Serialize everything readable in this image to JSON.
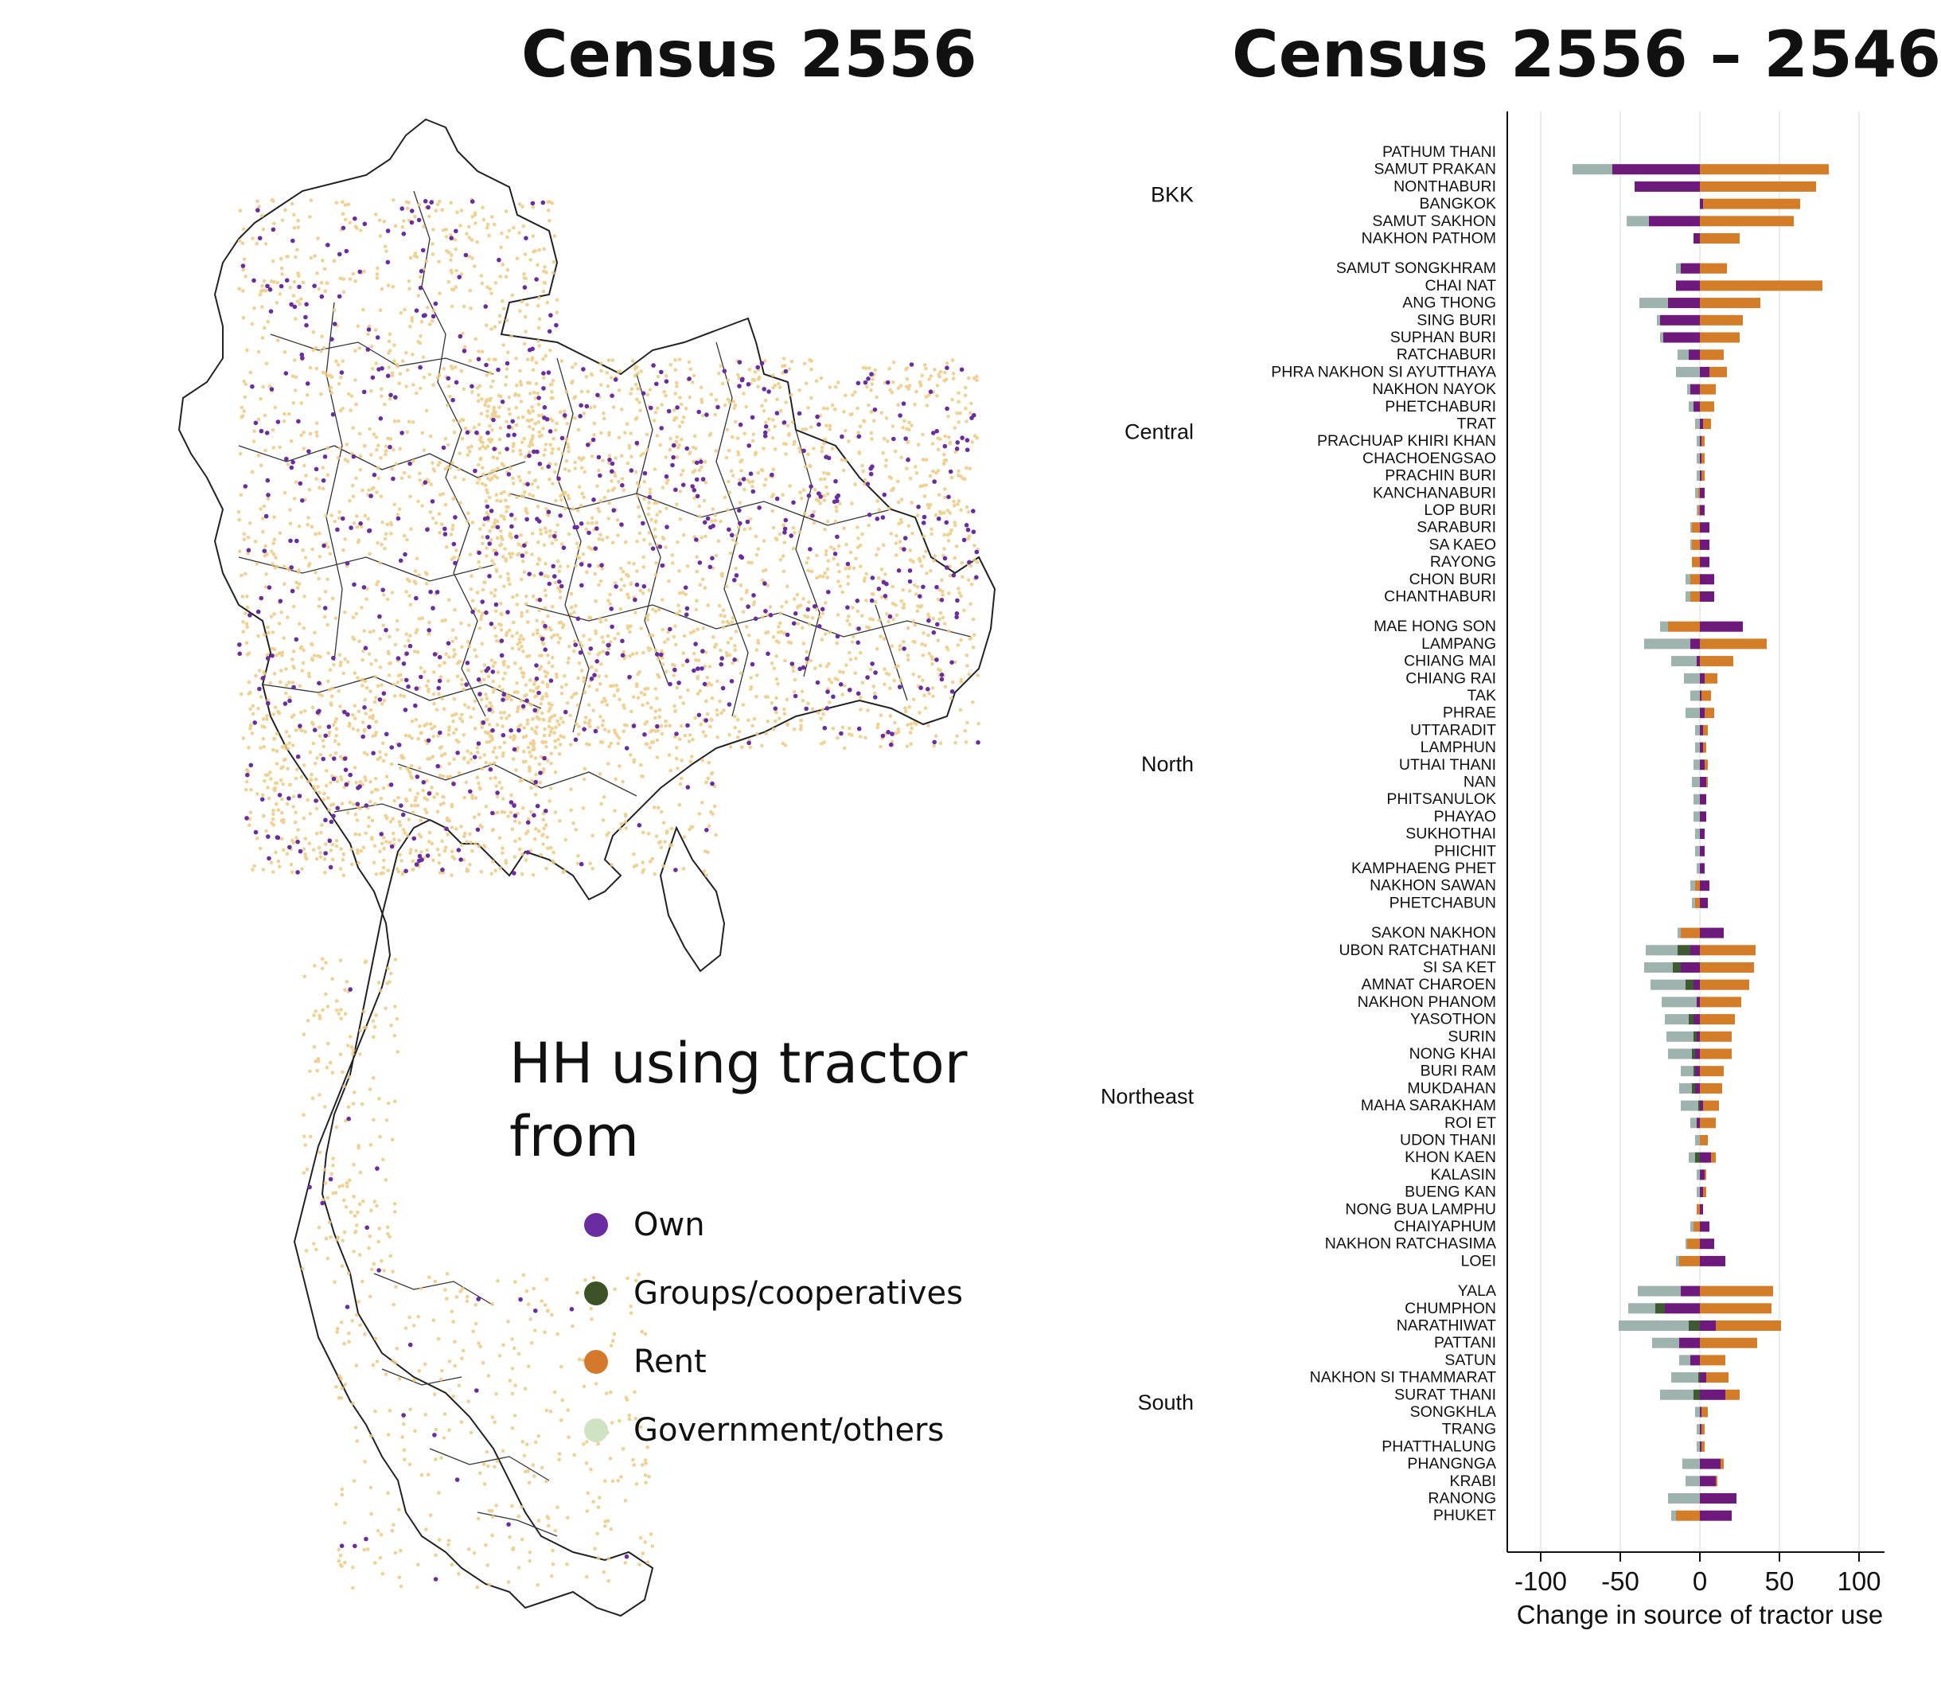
{
  "map_title": "Census 2556",
  "chart_title": "Census 2556 – 2546",
  "legend": {
    "title": "HH using tractor from",
    "items": [
      {
        "label": "Own",
        "color": "#6a2ca0"
      },
      {
        "label": "Groups/cooperatives",
        "color": "#3b5226"
      },
      {
        "label": "Rent",
        "color": "#d4782b"
      },
      {
        "label": "Government/others",
        "color": "#cfe3c2"
      }
    ]
  },
  "chart_data": {
    "type": "bar",
    "orientation": "horizontal",
    "stacked": true,
    "title": "Census 2556 – 2546",
    "xlabel": "Change in source of tractor use",
    "xlim": [
      -120,
      110
    ],
    "xticks": [
      -100,
      -50,
      0,
      50,
      100
    ],
    "grid": true,
    "colors": {
      "Own": "#6e1a7c",
      "Groups": "#3f5a33",
      "Rent": "#d37d28",
      "Government": "#9eb3ae"
    },
    "regions": [
      {
        "name": "BKK",
        "provinces": [
          {
            "name": "PATHUM THANI",
            "own": 0,
            "group": 0,
            "rent": 0,
            "gov": 0
          },
          {
            "name": "SAMUT PRAKAN",
            "own": -55,
            "group": 0,
            "rent": 81,
            "gov": -25
          },
          {
            "name": "NONTHABURI",
            "own": -41,
            "group": 0,
            "rent": 73,
            "gov": 0
          },
          {
            "name": "BANGKOK",
            "own": 2,
            "group": 0,
            "rent": 61,
            "gov": 0
          },
          {
            "name": "SAMUT SAKHON",
            "own": -32,
            "group": 0,
            "rent": 59,
            "gov": -14
          },
          {
            "name": "NAKHON PATHOM",
            "own": -4,
            "group": 0,
            "rent": 25,
            "gov": 0
          }
        ]
      },
      {
        "name": "Central",
        "provinces": [
          {
            "name": "SAMUT SONGKHRAM",
            "own": -12,
            "group": 0,
            "rent": 17,
            "gov": -3
          },
          {
            "name": "CHAI NAT",
            "own": -15,
            "group": 0,
            "rent": 77,
            "gov": 0
          },
          {
            "name": "ANG THONG",
            "own": -20,
            "group": 0,
            "rent": 38,
            "gov": -18
          },
          {
            "name": "SING BURI",
            "own": -25,
            "group": 0,
            "rent": 27,
            "gov": -2
          },
          {
            "name": "SUPHAN BURI",
            "own": -23,
            "group": 0,
            "rent": 25,
            "gov": -2
          },
          {
            "name": "RATCHABURI",
            "own": -7,
            "group": 0,
            "rent": 15,
            "gov": -7
          },
          {
            "name": "PHRA NAKHON SI AYUTTHAYA",
            "own": 6,
            "group": 0,
            "rent": 11,
            "gov": -15
          },
          {
            "name": "NAKHON NAYOK",
            "own": -6,
            "group": 0,
            "rent": 10,
            "gov": -2
          },
          {
            "name": "PHETCHABURI",
            "own": -4,
            "group": 0,
            "rent": 9,
            "gov": -3
          },
          {
            "name": "TRAT",
            "own": 2,
            "group": 0,
            "rent": 5,
            "gov": -3
          },
          {
            "name": "PRACHUAP KHIRI KHAN",
            "own": 1,
            "group": 0,
            "rent": 2,
            "gov": -2
          },
          {
            "name": "CHACHOENGSAO",
            "own": 1,
            "group": 0,
            "rent": 2,
            "gov": -2
          },
          {
            "name": "PRACHIN BURI",
            "own": 1,
            "group": 0,
            "rent": 2,
            "gov": -2
          },
          {
            "name": "KANCHANABURI",
            "own": 3,
            "group": 0,
            "rent": -1,
            "gov": -2
          },
          {
            "name": "LOP BURI",
            "own": 3,
            "group": 0,
            "rent": -1,
            "gov": -1
          },
          {
            "name": "SARABURI",
            "own": 6,
            "group": 0,
            "rent": -5,
            "gov": -1
          },
          {
            "name": "SA KAEO",
            "own": 6,
            "group": 0,
            "rent": -5,
            "gov": -1
          },
          {
            "name": "RAYONG",
            "own": 6,
            "group": 0,
            "rent": -5,
            "gov": 0
          },
          {
            "name": "CHON BURI",
            "own": 9,
            "group": 0,
            "rent": -6,
            "gov": -3
          },
          {
            "name": "CHANTHABURI",
            "own": 9,
            "group": 0,
            "rent": -6,
            "gov": -3
          }
        ]
      },
      {
        "name": "North",
        "provinces": [
          {
            "name": "MAE HONG SON",
            "own": 27,
            "group": 0,
            "rent": -20,
            "gov": -5
          },
          {
            "name": "LAMPANG",
            "own": -6,
            "group": 0,
            "rent": 42,
            "gov": -29
          },
          {
            "name": "CHIANG MAI",
            "own": -2,
            "group": 0,
            "rent": 21,
            "gov": -16
          },
          {
            "name": "CHIANG RAI",
            "own": 3,
            "group": 0,
            "rent": 8,
            "gov": -10
          },
          {
            "name": "TAK",
            "own": 1,
            "group": 0,
            "rent": 6,
            "gov": -6
          },
          {
            "name": "PHRAE",
            "own": 3,
            "group": 0,
            "rent": 6,
            "gov": -9
          },
          {
            "name": "UTTARADIT",
            "own": 2,
            "group": 0,
            "rent": 3,
            "gov": -3
          },
          {
            "name": "LAMPHUN",
            "own": 2,
            "group": 0,
            "rent": 2,
            "gov": -3
          },
          {
            "name": "UTHAI THANI",
            "own": 3,
            "group": 0,
            "rent": 2,
            "gov": -4
          },
          {
            "name": "NAN",
            "own": 4,
            "group": 0,
            "rent": 1,
            "gov": -5
          },
          {
            "name": "PHITSANULOK",
            "own": 4,
            "group": 0,
            "rent": 0,
            "gov": -4
          },
          {
            "name": "PHAYAO",
            "own": 4,
            "group": 0,
            "rent": 0,
            "gov": -4
          },
          {
            "name": "SUKHOTHAI",
            "own": 3,
            "group": 0,
            "rent": 0,
            "gov": -3
          },
          {
            "name": "PHICHIT",
            "own": 3,
            "group": 0,
            "rent": 0,
            "gov": -3
          },
          {
            "name": "KAMPHAENG PHET",
            "own": 3,
            "group": 0,
            "rent": 0,
            "gov": -2
          },
          {
            "name": "NAKHON SAWAN",
            "own": 6,
            "group": 0,
            "rent": -3,
            "gov": -3
          },
          {
            "name": "PHETCHABUN",
            "own": 5,
            "group": 0,
            "rent": -3,
            "gov": -2
          }
        ]
      },
      {
        "name": "Northeast",
        "provinces": [
          {
            "name": "SAKON NAKHON",
            "own": 15,
            "group": 0,
            "rent": -12,
            "gov": -2
          },
          {
            "name": "UBON RATCHATHANI",
            "own": -6,
            "group": -8,
            "rent": 35,
            "gov": -20
          },
          {
            "name": "SI SA KET",
            "own": -12,
            "group": -5,
            "rent": 34,
            "gov": -18
          },
          {
            "name": "AMNAT CHAROEN",
            "own": -4,
            "group": -5,
            "rent": 31,
            "gov": -22
          },
          {
            "name": "NAKHON PHANOM",
            "own": -2,
            "group": 0,
            "rent": 26,
            "gov": -22
          },
          {
            "name": "YASOTHON",
            "own": -4,
            "group": -3,
            "rent": 22,
            "gov": -15
          },
          {
            "name": "SURIN",
            "own": -2,
            "group": -2,
            "rent": 20,
            "gov": -17
          },
          {
            "name": "NONG KHAI",
            "own": -3,
            "group": -2,
            "rent": 20,
            "gov": -15
          },
          {
            "name": "BURI RAM",
            "own": -3,
            "group": -1,
            "rent": 15,
            "gov": -8
          },
          {
            "name": "MUKDAHAN",
            "own": -3,
            "group": -2,
            "rent": 14,
            "gov": -8
          },
          {
            "name": "MAHA SARAKHAM",
            "own": 2,
            "group": -1,
            "rent": 10,
            "gov": -11
          },
          {
            "name": "ROI ET",
            "own": -2,
            "group": 0,
            "rent": 10,
            "gov": -4
          },
          {
            "name": "UDON THANI",
            "own": 0,
            "group": 0,
            "rent": 5,
            "gov": -3
          },
          {
            "name": "KHON KAEN",
            "own": 7,
            "group": -3,
            "rent": 3,
            "gov": -4
          },
          {
            "name": "KALASIN",
            "own": 3,
            "group": 0,
            "rent": 1,
            "gov": -2
          },
          {
            "name": "BUENG KAN",
            "own": 2,
            "group": 0,
            "rent": 2,
            "gov": -2
          },
          {
            "name": "NONG BUA LAMPHU",
            "own": 2,
            "group": 0,
            "rent": -2,
            "gov": 0
          },
          {
            "name": "CHAIYAPHUM",
            "own": 6,
            "group": 0,
            "rent": -4,
            "gov": -2
          },
          {
            "name": "NAKHON RATCHASIMA",
            "own": 9,
            "group": 0,
            "rent": -8,
            "gov": -1
          },
          {
            "name": "LOEI",
            "own": 16,
            "group": 0,
            "rent": -13,
            "gov": -2
          }
        ]
      },
      {
        "name": "South",
        "provinces": [
          {
            "name": "YALA",
            "own": -12,
            "group": 0,
            "rent": 46,
            "gov": -27
          },
          {
            "name": "CHUMPHON",
            "own": -22,
            "group": -6,
            "rent": 45,
            "gov": -17
          },
          {
            "name": "NARATHIWAT",
            "own": 10,
            "group": -7,
            "rent": 41,
            "gov": -44
          },
          {
            "name": "PATTANI",
            "own": -13,
            "group": 0,
            "rent": 36,
            "gov": -17
          },
          {
            "name": "SATUN",
            "own": -6,
            "group": 0,
            "rent": 16,
            "gov": -7
          },
          {
            "name": "NAKHON SI THAMMARAT",
            "own": 4,
            "group": -1,
            "rent": 14,
            "gov": -17
          },
          {
            "name": "SURAT THANI",
            "own": 16,
            "group": -4,
            "rent": 9,
            "gov": -21
          },
          {
            "name": "SONGKHLA",
            "own": 1,
            "group": 0,
            "rent": 4,
            "gov": -3
          },
          {
            "name": "TRANG",
            "own": 1,
            "group": 0,
            "rent": 2,
            "gov": -2
          },
          {
            "name": "PHATTHALUNG",
            "own": 1,
            "group": 0,
            "rent": 2,
            "gov": -2
          },
          {
            "name": "PHANGNGA",
            "own": 13,
            "group": 0,
            "rent": 2,
            "gov": -11
          },
          {
            "name": "KRABI",
            "own": 10,
            "group": 0,
            "rent": 1,
            "gov": -9
          },
          {
            "name": "RANONG",
            "own": 23,
            "group": 0,
            "rent": 0,
            "gov": -20
          },
          {
            "name": "PHUKET",
            "own": 20,
            "group": 0,
            "rent": -15,
            "gov": -3
          }
        ]
      }
    ]
  }
}
